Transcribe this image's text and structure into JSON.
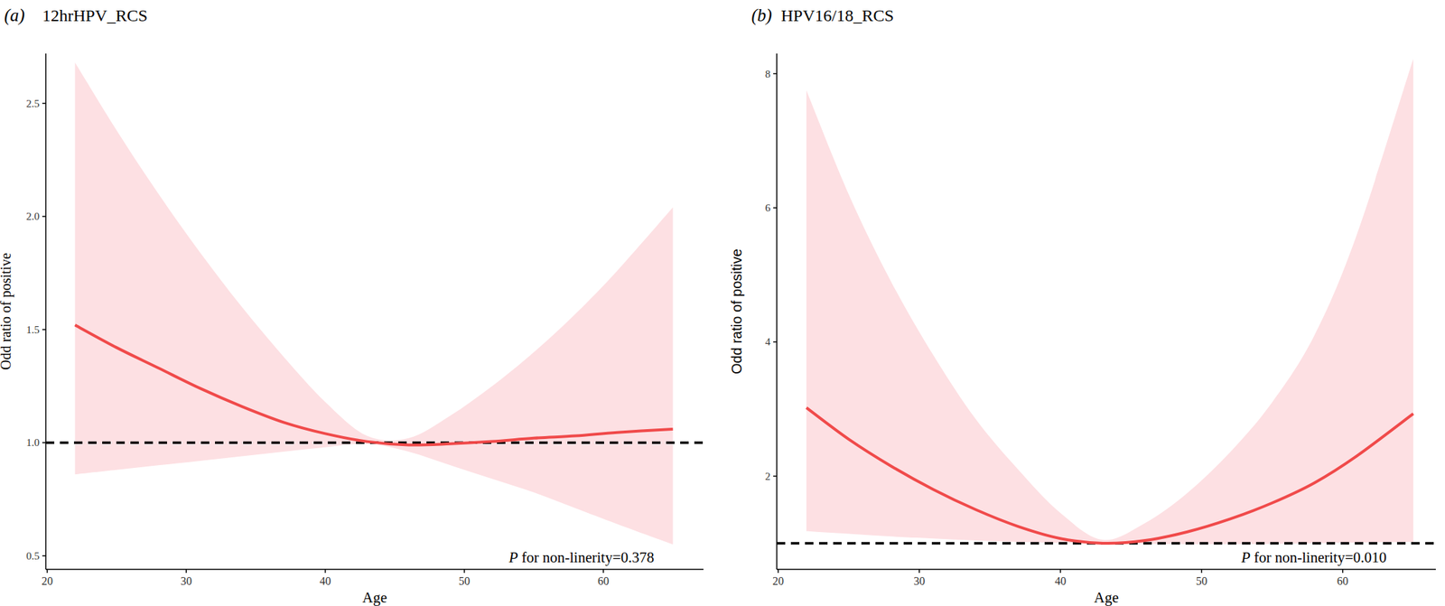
{
  "chart_data": [
    {
      "type": "line",
      "panel": "(a)",
      "title": "12hrHPV_RCS",
      "x_label": "Age",
      "y_label": "Odd ratio of positive",
      "annotation": "P for non-linerity=0.378",
      "x": [
        22,
        25,
        28,
        31,
        34,
        37,
        40,
        43,
        46,
        49,
        52,
        55,
        58,
        61,
        65
      ],
      "series": [
        {
          "color": "#f04a4a",
          "values": [
            1.52,
            1.42,
            1.33,
            1.24,
            1.16,
            1.09,
            1.04,
            1.005,
            0.99,
            0.995,
            1.005,
            1.02,
            1.03,
            1.045,
            1.06
          ],
          "lower": [
            0.86,
            0.88,
            0.9,
            0.92,
            0.94,
            0.96,
            0.98,
            0.995,
            0.96,
            0.9,
            0.84,
            0.78,
            0.71,
            0.64,
            0.55
          ],
          "upper": [
            2.68,
            2.38,
            2.1,
            1.84,
            1.6,
            1.38,
            1.18,
            1.03,
            1.02,
            1.12,
            1.25,
            1.4,
            1.57,
            1.76,
            2.04
          ]
        }
      ],
      "reference_y": 1,
      "xlim": [
        19.9,
        67.2
      ],
      "xticks": [
        20,
        30,
        40,
        50,
        60
      ],
      "ylim": [
        0.44,
        2.72
      ],
      "yticks": [
        0.5,
        {
          "value": 1,
          "label": "1.0"
        },
        1.5,
        {
          "value": 2,
          "label": "2.0"
        },
        2.5
      ]
    },
    {
      "type": "line",
      "panel": "(b)",
      "title": "HPV16/18_RCS",
      "x_label": "Age",
      "y_label": "Odd ratio of positive",
      "annotation": "P for non-linerity=0.010",
      "x": [
        22,
        25,
        28,
        31,
        34,
        37,
        40,
        43,
        46,
        49,
        52,
        55,
        58,
        61,
        65
      ],
      "series": [
        {
          "color": "#f04a4a",
          "values": [
            3.02,
            2.55,
            2.15,
            1.8,
            1.5,
            1.25,
            1.07,
            1.0,
            1.04,
            1.17,
            1.36,
            1.6,
            1.9,
            2.3,
            2.93
          ],
          "lower": [
            1.18,
            1.14,
            1.1,
            1.07,
            1.04,
            1.02,
            1.005,
            1.0,
            0.99,
            0.985,
            0.985,
            0.99,
            1.0,
            1.01,
            1.02
          ],
          "upper": [
            7.75,
            6.2,
            4.9,
            3.8,
            2.85,
            2.1,
            1.45,
            1.05,
            1.3,
            1.75,
            2.35,
            3.1,
            4.1,
            5.6,
            8.22
          ]
        }
      ],
      "reference_y": 1,
      "xlim": [
        19.9,
        66.6
      ],
      "xticks": [
        20,
        30,
        40,
        50,
        60
      ],
      "ylim": [
        0.61,
        8.3
      ],
      "yticks": [
        2,
        4,
        6,
        8
      ]
    }
  ]
}
